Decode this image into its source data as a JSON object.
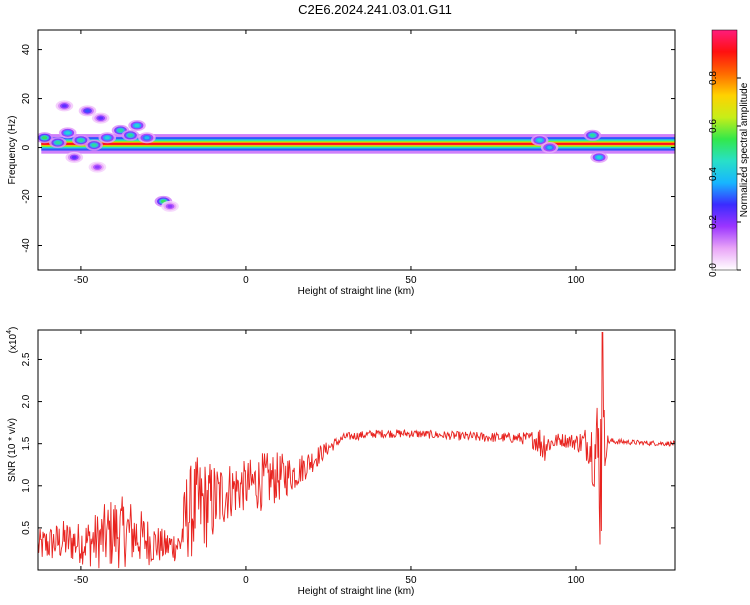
{
  "title": "C2E6.2024.241.03.01.G11",
  "chart_data": [
    {
      "type": "heatmap",
      "xlabel": "Height of straight line (km)",
      "ylabel": "Frequency (Hz)",
      "xlim": [
        -63,
        130
      ],
      "ylim": [
        -50,
        48
      ],
      "x_ticks": [
        -50,
        0,
        50,
        100
      ],
      "x_tick_labels": [
        "-50",
        "0",
        "50",
        "100"
      ],
      "y_ticks": [
        -40,
        -20,
        0,
        20,
        40
      ],
      "y_tick_labels": [
        "-40",
        "-20",
        "0",
        "20",
        "40"
      ],
      "colorbar": {
        "label": "Normalized spectral amplitude",
        "range": [
          0,
          1
        ],
        "ticks": [
          0.0,
          0.2,
          0.4,
          0.6,
          0.8
        ],
        "tick_labels": [
          "0.0",
          "0.2",
          "0.4",
          "0.6",
          "0.8"
        ],
        "colors": [
          "#ffffff",
          "#e9a4f7",
          "#9b35ff",
          "#3a2cff",
          "#17b6ff",
          "#28e0c8",
          "#33e84a",
          "#c7ee18",
          "#ffd200",
          "#ff6a00",
          "#ff1010",
          "#ff1c7c"
        ]
      },
      "main_band": {
        "x_range": [
          -62,
          130
        ],
        "freq_center": 1.5,
        "freq_width": 2.5,
        "amplitude": 0.9
      },
      "blobs": [
        {
          "x": -61,
          "y": 4,
          "amplitude": 0.55
        },
        {
          "x": -57,
          "y": 2,
          "amplitude": 0.5
        },
        {
          "x": -54,
          "y": 6,
          "amplitude": 0.45
        },
        {
          "x": -50,
          "y": 3,
          "amplitude": 0.5
        },
        {
          "x": -46,
          "y": 1,
          "amplitude": 0.5
        },
        {
          "x": -42,
          "y": 4,
          "amplitude": 0.45
        },
        {
          "x": -38,
          "y": 7,
          "amplitude": 0.5
        },
        {
          "x": -35,
          "y": 5,
          "amplitude": 0.5
        },
        {
          "x": -33,
          "y": 9,
          "amplitude": 0.45
        },
        {
          "x": -30,
          "y": 4,
          "amplitude": 0.4
        },
        {
          "x": -55,
          "y": 17,
          "amplitude": 0.25
        },
        {
          "x": -48,
          "y": 15,
          "amplitude": 0.3
        },
        {
          "x": -44,
          "y": 12,
          "amplitude": 0.25
        },
        {
          "x": -52,
          "y": -4,
          "amplitude": 0.25
        },
        {
          "x": -45,
          "y": -8,
          "amplitude": 0.2
        },
        {
          "x": -25,
          "y": -22,
          "amplitude": 0.55
        },
        {
          "x": -23,
          "y": -24,
          "amplitude": 0.2
        },
        {
          "x": 89,
          "y": 3,
          "amplitude": 0.45
        },
        {
          "x": 92,
          "y": 0,
          "amplitude": 0.4
        },
        {
          "x": 105,
          "y": 5,
          "amplitude": 0.5
        },
        {
          "x": 107,
          "y": -4,
          "amplitude": 0.45
        }
      ]
    },
    {
      "type": "line",
      "xlabel": "Height of straight line (km)",
      "ylabel": "SNR (10 * v/v)",
      "y_multiplier_label": "(x10",
      "y_multiplier_exp": "4",
      "y_multiplier_close": ")",
      "xlim": [
        -63,
        130
      ],
      "ylim": [
        0,
        2.85
      ],
      "x_ticks": [
        -50,
        0,
        50,
        100
      ],
      "x_tick_labels": [
        "-50",
        "0",
        "50",
        "100"
      ],
      "y_ticks": [
        0.5,
        1.0,
        1.5,
        2.0,
        2.5
      ],
      "y_tick_labels": [
        "0.5",
        "1.0",
        "1.5",
        "2.0",
        "2.5"
      ],
      "series": [
        {
          "color": "#e8231f",
          "envelope_x": [
            -63,
            -55,
            -50,
            -45,
            -40,
            -35,
            -30,
            -25,
            -20,
            -18,
            -15,
            -10,
            -5,
            0,
            5,
            10,
            15,
            20,
            25,
            30,
            40,
            50,
            60,
            70,
            80,
            86,
            88,
            90,
            92,
            95,
            100,
            104,
            106,
            107,
            108,
            109,
            110,
            115,
            120,
            130
          ],
          "envelope_mean": [
            0.28,
            0.35,
            0.32,
            0.35,
            0.45,
            0.45,
            0.35,
            0.28,
            0.3,
            0.65,
            0.75,
            0.8,
            0.95,
            1.0,
            1.05,
            1.1,
            1.15,
            1.3,
            1.45,
            1.58,
            1.62,
            1.62,
            1.6,
            1.58,
            1.57,
            1.56,
            1.55,
            1.5,
            1.5,
            1.55,
            1.52,
            1.5,
            1.4,
            1.3,
            1.2,
            1.5,
            1.53,
            1.52,
            1.51,
            1.5
          ],
          "envelope_amp": [
            0.2,
            0.25,
            0.25,
            0.35,
            0.45,
            0.4,
            0.3,
            0.2,
            0.2,
            0.55,
            0.6,
            0.5,
            0.35,
            0.3,
            0.35,
            0.3,
            0.2,
            0.15,
            0.08,
            0.05,
            0.05,
            0.05,
            0.05,
            0.06,
            0.06,
            0.08,
            0.15,
            0.25,
            0.12,
            0.08,
            0.1,
            0.25,
            0.6,
            1.1,
            1.2,
            0.2,
            0.04,
            0.03,
            0.03,
            0.03
          ],
          "peak_x": 108,
          "peak_y": 2.82
        }
      ]
    }
  ]
}
